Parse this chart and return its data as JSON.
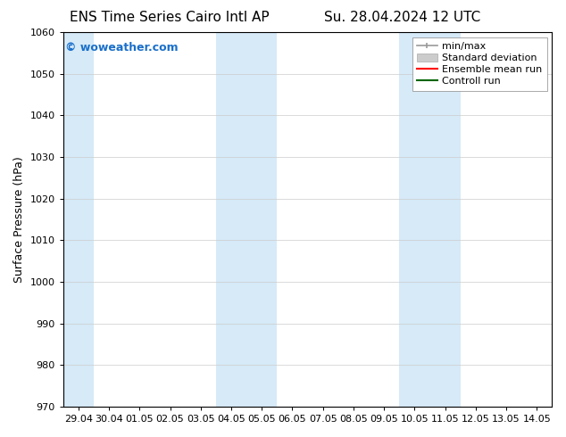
{
  "title_left": "ENS Time Series Cairo Intl AP",
  "title_right": "Su. 28.04.2024 12 UTC",
  "ylabel": "Surface Pressure (hPa)",
  "ylim": [
    970,
    1060
  ],
  "yticks": [
    970,
    980,
    990,
    1000,
    1010,
    1020,
    1030,
    1040,
    1050,
    1060
  ],
  "xtick_labels": [
    "29.04",
    "30.04",
    "01.05",
    "02.05",
    "03.05",
    "04.05",
    "05.05",
    "06.05",
    "07.05",
    "08.05",
    "09.05",
    "10.05",
    "11.05",
    "12.05",
    "13.05",
    "14.05"
  ],
  "shaded_indices": [
    0,
    5,
    6,
    11,
    12
  ],
  "shaded_color": "#d6eaf8",
  "background_color": "#ffffff",
  "plot_bg_color": "#ffffff",
  "watermark": "© woweather.com",
  "watermark_color": "#1a6fca",
  "legend_items": [
    {
      "label": "min/max",
      "color": "#999999",
      "style": "line_with_ticks"
    },
    {
      "label": "Standard deviation",
      "color": "#cccccc",
      "style": "filled"
    },
    {
      "label": "Ensemble mean run",
      "color": "#ff0000",
      "style": "line"
    },
    {
      "label": "Controll run",
      "color": "#006400",
      "style": "line"
    }
  ],
  "title_fontsize": 11,
  "tick_fontsize": 8,
  "ylabel_fontsize": 9,
  "legend_fontsize": 8,
  "watermark_fontsize": 9,
  "grid_color": "#cccccc",
  "spine_color": "#000000"
}
